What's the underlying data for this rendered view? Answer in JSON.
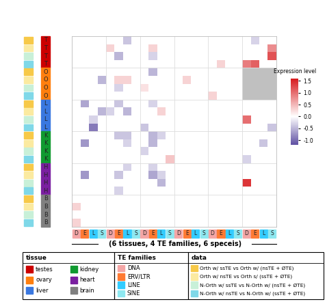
{
  "chart_data": {
    "type": "heatmap",
    "subtitle": "(6 tissues, 4 TE families, 6 speceis)",
    "colorbar_label": "Expression level",
    "color_range": [
      -1.2,
      1.6
    ],
    "color_ticks": [
      {
        "value": -1,
        "label": "-1.0"
      },
      -0.5,
      {
        "value": 0,
        "label": "0.0"
      },
      0.5,
      {
        "value": 1,
        "label": "1.0"
      },
      1.5
    ],
    "legend_titles": {
      "tissue": "tissue",
      "te": "TE families",
      "data": "data"
    },
    "tissues": [
      {
        "name": "testes",
        "letter": "T",
        "color": "#cc0000"
      },
      {
        "name": "ovary",
        "letter": "O",
        "color": "#ff7f0e"
      },
      {
        "name": "liver",
        "letter": "L",
        "color": "#3a78e0"
      },
      {
        "name": "kidney",
        "letter": "K",
        "color": "#109a30"
      },
      {
        "name": "heart",
        "letter": "H",
        "color": "#7a1fa0"
      },
      {
        "name": "brain",
        "letter": "B",
        "color": "#808080"
      }
    ],
    "te_families": [
      {
        "name": "DNA",
        "letter": "D",
        "color": "#f4a6a6"
      },
      {
        "name": "ERV/LTR",
        "letter": "E",
        "color": "#ff7a33"
      },
      {
        "name": "LINE",
        "letter": "L",
        "color": "#33ccff"
      },
      {
        "name": "SINE",
        "letter": "S",
        "color": "#8ee8f0"
      }
    ],
    "data_types": [
      {
        "label": "Orth w/ ssTE vs Orth w/ (nsTE + ØTE)",
        "color": "#f7c948"
      },
      {
        "label": "Orth w/ nsTE vs Orth s/ (ssTE + ØTE)",
        "color": "#fbeaa0"
      },
      {
        "label": "N-Orth w/ ssTE vs N-Orth w/ (nsTE + ØTE)",
        "color": "#c8f0d8"
      },
      {
        "label": "N-Orth w/ nsTE vs N-Orth w/ (ssTE + ØTE)",
        "color": "#7fd8e8"
      }
    ],
    "matrix": [
      [
        null,
        null,
        null,
        null,
        null,
        null,
        -0.4,
        null,
        null,
        null,
        null,
        null,
        null,
        null,
        null,
        null,
        null,
        null,
        null,
        null,
        null,
        -0.3,
        null,
        null
      ],
      [
        null,
        null,
        null,
        null,
        0.3,
        null,
        null,
        null,
        null,
        0.3,
        null,
        null,
        null,
        null,
        null,
        null,
        null,
        null,
        null,
        null,
        null,
        null,
        null,
        0.8
      ],
      [
        null,
        null,
        null,
        null,
        null,
        -0.5,
        null,
        null,
        null,
        -0.3,
        null,
        null,
        null,
        null,
        null,
        null,
        null,
        null,
        null,
        null,
        null,
        null,
        null,
        1.2
      ],
      [
        null,
        null,
        null,
        null,
        null,
        null,
        null,
        null,
        null,
        null,
        null,
        null,
        null,
        null,
        null,
        null,
        null,
        0.3,
        null,
        null,
        0.9,
        1.1,
        null,
        null
      ],
      [
        null,
        null,
        null,
        null,
        null,
        null,
        null,
        null,
        null,
        -0.5,
        null,
        null,
        null,
        null,
        null,
        null,
        null,
        null,
        null,
        null,
        "NA",
        "NA",
        "NA",
        "NA"
      ],
      [
        null,
        null,
        null,
        -0.5,
        null,
        0.3,
        0.3,
        null,
        null,
        null,
        null,
        null,
        null,
        0.3,
        null,
        null,
        null,
        null,
        null,
        null,
        "NA",
        "NA",
        "NA",
        "NA"
      ],
      [
        null,
        null,
        null,
        null,
        null,
        -0.3,
        null,
        null,
        0.2,
        null,
        null,
        null,
        null,
        null,
        null,
        null,
        null,
        null,
        null,
        null,
        "NA",
        "NA",
        "NA",
        "NA"
      ],
      [
        null,
        null,
        null,
        null,
        null,
        null,
        null,
        null,
        null,
        null,
        null,
        null,
        null,
        null,
        null,
        null,
        0.3,
        null,
        null,
        null,
        "NA",
        "NA",
        "NA",
        "NA"
      ],
      [
        null,
        -0.6,
        null,
        null,
        null,
        -0.4,
        null,
        null,
        null,
        -0.3,
        null,
        null,
        null,
        null,
        null,
        null,
        null,
        null,
        null,
        null,
        null,
        null,
        null,
        null
      ],
      [
        null,
        null,
        null,
        -0.5,
        -0.3,
        null,
        -0.5,
        null,
        null,
        null,
        0.3,
        null,
        null,
        null,
        null,
        null,
        null,
        null,
        null,
        null,
        null,
        null,
        null,
        null
      ],
      [
        null,
        null,
        -0.3,
        null,
        null,
        null,
        null,
        null,
        null,
        null,
        null,
        null,
        null,
        null,
        null,
        null,
        null,
        null,
        null,
        null,
        1.0,
        null,
        null,
        null
      ],
      [
        null,
        null,
        -0.9,
        null,
        null,
        null,
        null,
        null,
        -0.4,
        null,
        null,
        null,
        null,
        null,
        null,
        null,
        null,
        null,
        null,
        null,
        null,
        null,
        null,
        -0.4
      ],
      [
        null,
        null,
        null,
        null,
        null,
        -0.4,
        -0.4,
        null,
        null,
        -0.5,
        -0.3,
        null,
        null,
        null,
        null,
        null,
        null,
        null,
        null,
        null,
        null,
        null,
        null,
        null
      ],
      [
        null,
        -0.7,
        null,
        null,
        null,
        null,
        -0.3,
        null,
        null,
        -0.5,
        null,
        null,
        null,
        null,
        null,
        null,
        null,
        null,
        null,
        null,
        null,
        null,
        -0.4,
        null
      ],
      [
        null,
        null,
        null,
        null,
        null,
        null,
        null,
        null,
        -0.3,
        null,
        null,
        null,
        null,
        null,
        null,
        null,
        null,
        null,
        null,
        null,
        null,
        null,
        null,
        null
      ],
      [
        null,
        null,
        null,
        null,
        null,
        null,
        null,
        null,
        null,
        null,
        null,
        0.4,
        null,
        null,
        null,
        null,
        null,
        null,
        null,
        null,
        -0.3,
        null,
        null,
        null
      ],
      [
        null,
        null,
        null,
        null,
        null,
        null,
        -0.3,
        null,
        null,
        -0.3,
        null,
        null,
        null,
        null,
        null,
        null,
        null,
        null,
        null,
        null,
        null,
        null,
        null,
        null
      ],
      [
        null,
        -0.7,
        null,
        null,
        null,
        -0.4,
        null,
        null,
        null,
        -0.6,
        -0.3,
        null,
        null,
        null,
        null,
        null,
        null,
        null,
        null,
        null,
        null,
        null,
        null,
        null
      ],
      [
        null,
        null,
        null,
        null,
        null,
        null,
        null,
        null,
        null,
        null,
        -0.5,
        null,
        null,
        null,
        null,
        null,
        null,
        null,
        null,
        null,
        1.4,
        null,
        null,
        null
      ],
      [
        null,
        null,
        null,
        null,
        null,
        -0.3,
        null,
        null,
        null,
        null,
        null,
        null,
        null,
        null,
        null,
        null,
        null,
        null,
        null,
        null,
        null,
        null,
        null,
        null
      ],
      [
        null,
        null,
        null,
        null,
        null,
        null,
        null,
        null,
        null,
        null,
        null,
        null,
        null,
        null,
        null,
        null,
        null,
        null,
        null,
        null,
        null,
        null,
        null,
        null
      ],
      [
        0.3,
        null,
        null,
        null,
        null,
        null,
        null,
        null,
        null,
        null,
        null,
        null,
        null,
        null,
        null,
        null,
        null,
        null,
        null,
        null,
        null,
        null,
        null,
        null
      ],
      [
        null,
        null,
        null,
        null,
        null,
        null,
        null,
        null,
        null,
        null,
        null,
        null,
        null,
        null,
        null,
        null,
        null,
        null,
        null,
        null,
        null,
        null,
        null,
        null
      ],
      [
        0.3,
        null,
        null,
        null,
        null,
        null,
        null,
        null,
        null,
        null,
        null,
        null,
        null,
        null,
        null,
        null,
        null,
        null,
        null,
        null,
        null,
        null,
        null,
        null
      ]
    ]
  }
}
